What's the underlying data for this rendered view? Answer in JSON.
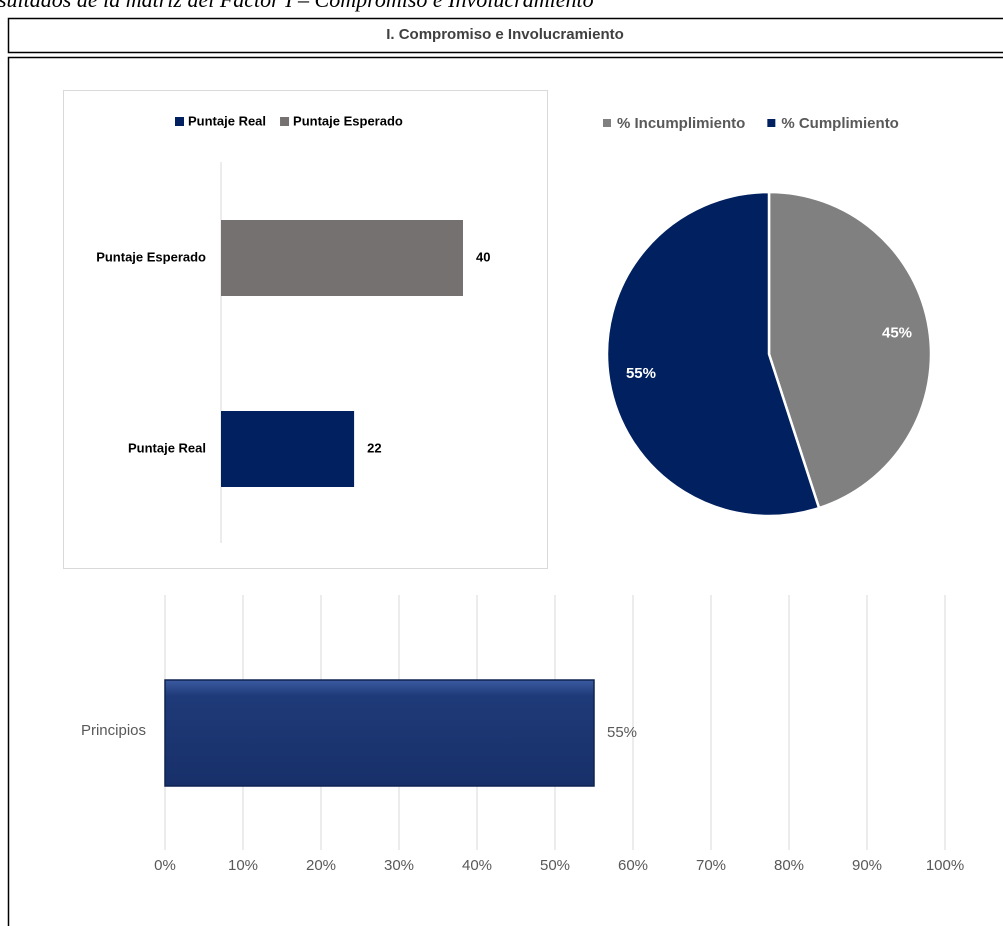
{
  "caption": "sultados de la matriz del Factor I – Compromiso e Involucramiento",
  "header": {
    "title": "I. Compromiso e Involucramiento"
  },
  "chart_data": [
    {
      "type": "hbar",
      "categories": [
        "Puntaje Esperado",
        "Puntaje Real"
      ],
      "series": [
        {
          "name": "Puntaje Real",
          "color": "#002060"
        },
        {
          "name": "Puntaje Esperado",
          "color": "#767171"
        }
      ],
      "values": [
        40,
        22
      ],
      "colors": [
        "#767171",
        "#002060"
      ]
    },
    {
      "type": "pie",
      "categories": [
        "% Incumplimiento",
        "% Cumplimiento"
      ],
      "values": [
        45,
        55
      ],
      "value_labels": [
        "45%",
        "55%"
      ],
      "colors": [
        "#808080",
        "#002060"
      ]
    },
    {
      "type": "bar",
      "categories": [
        "Principios"
      ],
      "values": [
        55
      ],
      "value_labels": [
        "55%"
      ],
      "color": "#1f3a78",
      "xlim": [
        0,
        100
      ],
      "grid": true,
      "xticks": [
        {
          "value": 0,
          "label": "0%"
        },
        {
          "value": 10,
          "label": "10%"
        },
        {
          "value": 20,
          "label": "20%"
        },
        {
          "value": 30,
          "label": "30%"
        },
        {
          "value": 40,
          "label": "40%"
        },
        {
          "value": 50,
          "label": "50%"
        },
        {
          "value": 60,
          "label": "60%"
        },
        {
          "value": 70,
          "label": "70%"
        },
        {
          "value": 80,
          "label": "80%"
        },
        {
          "value": 90,
          "label": "90%"
        },
        {
          "value": 100,
          "label": "100%"
        }
      ]
    }
  ]
}
